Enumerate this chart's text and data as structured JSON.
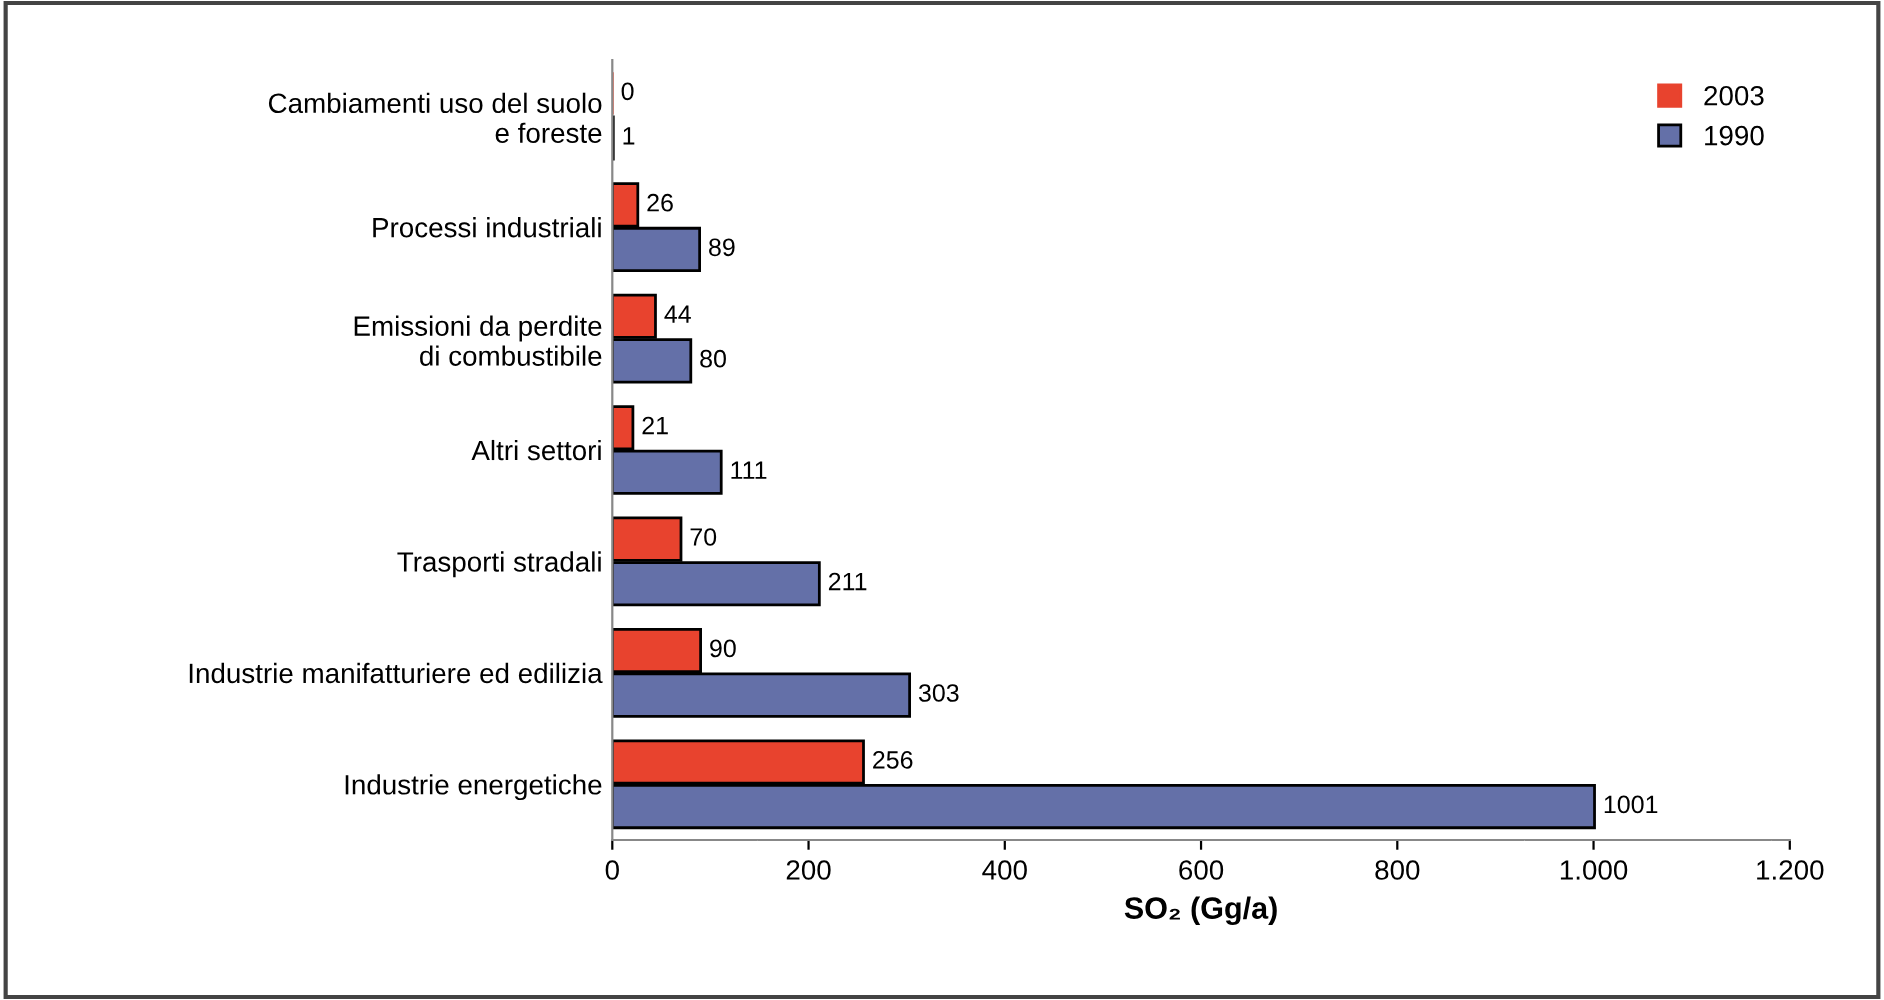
{
  "chart_data": {
    "type": "bar",
    "orientation": "horizontal",
    "xlabel": "SO₂ (Gg/a)",
    "categories": [
      "Cambiamenti uso del suolo\ne foreste",
      "Processi industriali",
      "Emissioni da perdite\ndi combustibile",
      "Altri settori",
      "Trasporti stradali",
      "Industrie manifatturiere ed edilizia",
      "Industrie energetiche"
    ],
    "series": [
      {
        "name": "2003",
        "color": "#e8432e",
        "values": [
          0,
          26,
          44,
          21,
          70,
          90,
          256
        ]
      },
      {
        "name": "1990",
        "color": "#6470a8",
        "values": [
          1,
          89,
          80,
          111,
          211,
          303,
          1001
        ]
      }
    ],
    "data_labels": true,
    "xlim": [
      0,
      1200
    ],
    "xticks": [
      0,
      200,
      400,
      600,
      800,
      {
        "value": 1000,
        "label": "1.000"
      },
      {
        "value": 1200,
        "label": "1.200"
      }
    ],
    "grid": false,
    "legend": "top right"
  }
}
